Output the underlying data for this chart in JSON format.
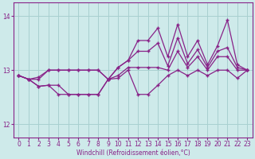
{
  "xlabel": "Windchill (Refroidissement éolien,°C)",
  "bg_color": "#ceeaea",
  "grid_color": "#a8d0d0",
  "line_color": "#882288",
  "xlim": [
    -0.5,
    23.5
  ],
  "ylim": [
    11.75,
    14.25
  ],
  "yticks": [
    12,
    13,
    14
  ],
  "xticks": [
    0,
    1,
    2,
    3,
    4,
    5,
    6,
    7,
    8,
    9,
    10,
    11,
    12,
    13,
    14,
    15,
    16,
    17,
    18,
    19,
    20,
    21,
    22,
    23
  ],
  "series": [
    [
      12.9,
      12.83,
      12.87,
      13.0,
      13.0,
      13.0,
      13.0,
      13.0,
      13.0,
      12.83,
      13.05,
      13.18,
      13.55,
      13.55,
      13.78,
      13.25,
      13.85,
      13.25,
      13.55,
      13.1,
      13.45,
      13.93,
      13.1,
      13.0
    ],
    [
      12.9,
      12.83,
      12.83,
      13.0,
      13.0,
      13.0,
      13.0,
      13.0,
      13.0,
      12.83,
      13.05,
      13.18,
      13.35,
      13.35,
      13.5,
      13.08,
      13.6,
      13.12,
      13.38,
      13.05,
      13.35,
      13.42,
      13.05,
      13.0
    ],
    [
      12.9,
      12.83,
      12.7,
      12.72,
      12.72,
      12.55,
      12.55,
      12.55,
      12.55,
      12.83,
      12.9,
      13.05,
      13.05,
      13.05,
      13.05,
      13.0,
      13.35,
      13.05,
      13.25,
      13.0,
      13.25,
      13.25,
      13.0,
      13.0
    ],
    [
      12.9,
      12.83,
      12.7,
      12.72,
      12.55,
      12.55,
      12.55,
      12.55,
      12.55,
      12.83,
      12.85,
      13.0,
      12.55,
      12.55,
      12.72,
      12.9,
      13.0,
      12.9,
      13.0,
      12.9,
      13.0,
      13.0,
      12.85,
      13.0
    ]
  ]
}
